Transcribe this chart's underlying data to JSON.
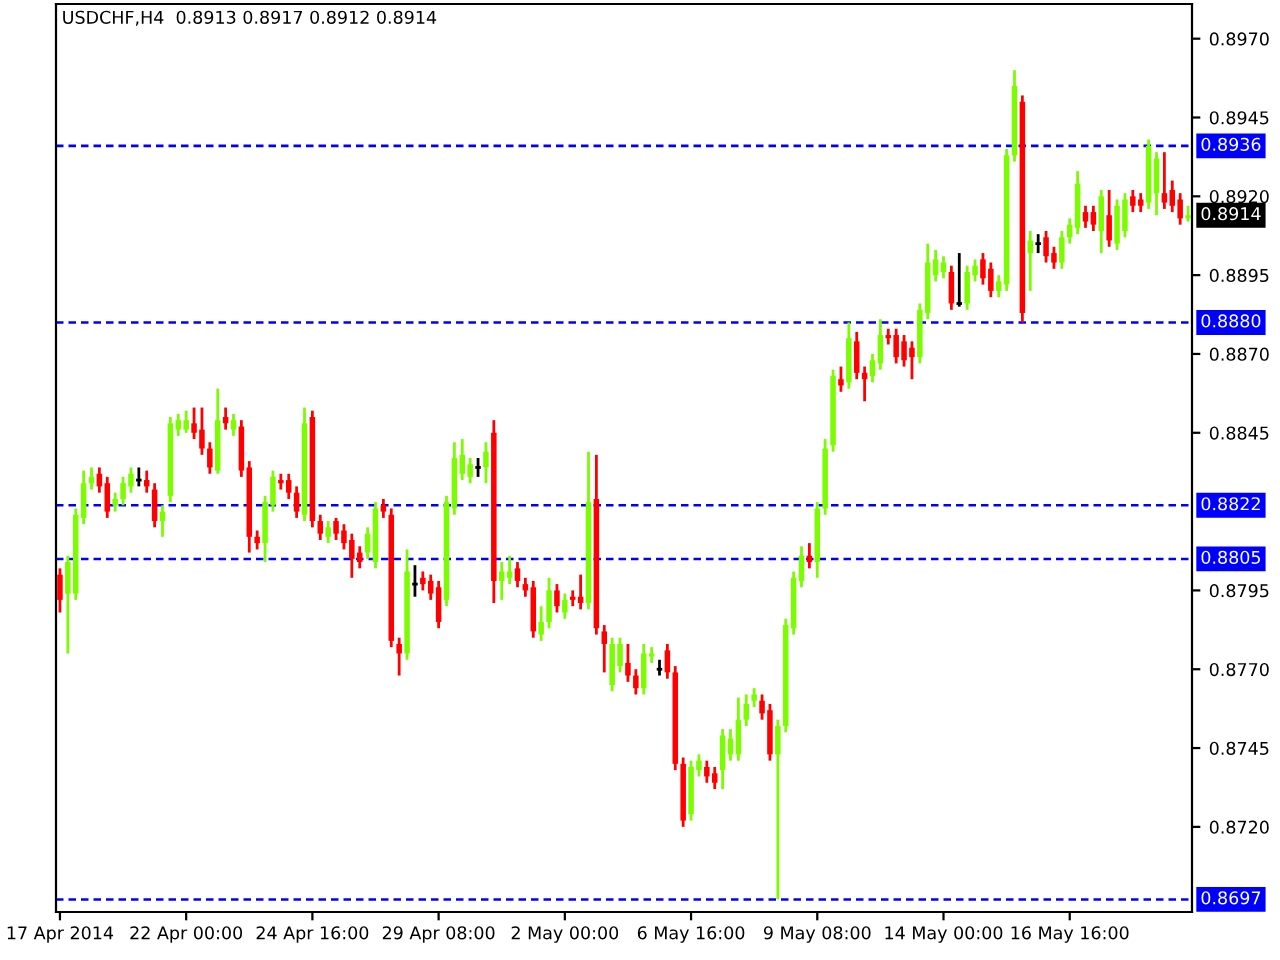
{
  "chart_data": {
    "type": "candlestick",
    "title": "USDCHF,H4  0.8913 0.8917 0.8912 0.8914",
    "categories": [
      "17 Apr 2014",
      null,
      null,
      null,
      null,
      null,
      null,
      null,
      null,
      null,
      null,
      null,
      null,
      null,
      null,
      null,
      "22 Apr 00:00",
      null,
      null,
      null,
      null,
      null,
      null,
      null,
      null,
      null,
      null,
      null,
      null,
      null,
      null,
      null,
      "24 Apr 16:00",
      null,
      null,
      null,
      null,
      null,
      null,
      null,
      null,
      null,
      null,
      null,
      null,
      null,
      null,
      null,
      "29 Apr 08:00",
      null,
      null,
      null,
      null,
      null,
      null,
      null,
      null,
      null,
      null,
      null,
      null,
      null,
      null,
      null,
      "2 May 00:00",
      null,
      null,
      null,
      null,
      null,
      null,
      null,
      null,
      null,
      null,
      null,
      null,
      null,
      null,
      null,
      "6 May 16:00",
      null,
      null,
      null,
      null,
      null,
      null,
      null,
      null,
      null,
      null,
      null,
      null,
      null,
      null,
      null,
      "9 May 08:00",
      null,
      null,
      null,
      null,
      null,
      null,
      null,
      null,
      null,
      null,
      null,
      null,
      null,
      null,
      null,
      "14 May 00:00",
      null,
      null,
      null,
      null,
      null,
      null,
      null,
      null,
      null,
      null,
      null,
      null,
      null,
      null,
      null,
      "16 May 16:00",
      null,
      null,
      null,
      null,
      null,
      null,
      null,
      null,
      null,
      null,
      null,
      null,
      null,
      null,
      null
    ],
    "ohlc": [
      [
        0.88,
        0.8802,
        0.8788,
        0.8792
      ],
      [
        0.8794,
        0.8806,
        0.8775,
        0.8804
      ],
      [
        0.8794,
        0.8821,
        0.8792,
        0.8819
      ],
      [
        0.8818,
        0.8833,
        0.8816,
        0.8829
      ],
      [
        0.8829,
        0.8834,
        0.8827,
        0.8831
      ],
      [
        0.8832,
        0.8834,
        0.8826,
        0.8828
      ],
      [
        0.8829,
        0.8831,
        0.8818,
        0.882
      ],
      [
        0.8822,
        0.8826,
        0.882,
        0.8824
      ],
      [
        0.8824,
        0.8831,
        0.8822,
        0.8829
      ],
      [
        0.8828,
        0.8834,
        0.8826,
        0.8832
      ],
      [
        0.883,
        0.8834,
        0.8828,
        0.883
      ],
      [
        0.883,
        0.8833,
        0.8826,
        0.8828
      ],
      [
        0.8827,
        0.8829,
        0.8815,
        0.8817
      ],
      [
        0.8817,
        0.8822,
        0.8812,
        0.882
      ],
      [
        0.8825,
        0.885,
        0.8823,
        0.8848
      ],
      [
        0.8846,
        0.8851,
        0.8844,
        0.8849
      ],
      [
        0.8846,
        0.8852,
        0.8845,
        0.8849
      ],
      [
        0.8848,
        0.8853,
        0.8843,
        0.8845
      ],
      [
        0.8846,
        0.8853,
        0.8838,
        0.884
      ],
      [
        0.884,
        0.8842,
        0.8832,
        0.8834
      ],
      [
        0.8833,
        0.8859,
        0.8832,
        0.8849
      ],
      [
        0.885,
        0.8853,
        0.8846,
        0.8848
      ],
      [
        0.8846,
        0.8851,
        0.8844,
        0.8849
      ],
      [
        0.8847,
        0.8849,
        0.8831,
        0.8833
      ],
      [
        0.8834,
        0.8836,
        0.8807,
        0.8812
      ],
      [
        0.8812,
        0.8814,
        0.8808,
        0.881
      ],
      [
        0.881,
        0.8825,
        0.8804,
        0.8823
      ],
      [
        0.8822,
        0.8833,
        0.882,
        0.8831
      ],
      [
        0.883,
        0.8832,
        0.8827,
        0.8829
      ],
      [
        0.883,
        0.8832,
        0.8824,
        0.8826
      ],
      [
        0.8826,
        0.8828,
        0.8818,
        0.882
      ],
      [
        0.8819,
        0.8853,
        0.8817,
        0.8848
      ],
      [
        0.885,
        0.8852,
        0.8815,
        0.8817
      ],
      [
        0.8817,
        0.8819,
        0.8811,
        0.8813
      ],
      [
        0.8812,
        0.8817,
        0.881,
        0.8815
      ],
      [
        0.8817,
        0.8818,
        0.8811,
        0.8813
      ],
      [
        0.8814,
        0.8816,
        0.8808,
        0.881
      ],
      [
        0.8811,
        0.8813,
        0.8799,
        0.8805
      ],
      [
        0.8807,
        0.8809,
        0.8802,
        0.8804
      ],
      [
        0.8807,
        0.8815,
        0.8805,
        0.8813
      ],
      [
        0.8804,
        0.8823,
        0.8802,
        0.8821
      ],
      [
        0.8822,
        0.8824,
        0.8818,
        0.882
      ],
      [
        0.8819,
        0.8821,
        0.8777,
        0.8779
      ],
      [
        0.8778,
        0.878,
        0.8768,
        0.8775
      ],
      [
        0.8775,
        0.8808,
        0.8773,
        0.8801
      ],
      [
        0.8797,
        0.8803,
        0.8793,
        0.8797
      ],
      [
        0.8799,
        0.8801,
        0.8795,
        0.8797
      ],
      [
        0.8798,
        0.88,
        0.8792,
        0.8794
      ],
      [
        0.8796,
        0.8798,
        0.8783,
        0.8785
      ],
      [
        0.8792,
        0.8825,
        0.879,
        0.8823
      ],
      [
        0.8821,
        0.8842,
        0.8819,
        0.8837
      ],
      [
        0.8832,
        0.8843,
        0.883,
        0.8838
      ],
      [
        0.8831,
        0.8837,
        0.8829,
        0.8835
      ],
      [
        0.8834,
        0.8837,
        0.8831,
        0.8834
      ],
      [
        0.8834,
        0.8842,
        0.8829,
        0.8839
      ],
      [
        0.8845,
        0.8849,
        0.8791,
        0.8798
      ],
      [
        0.8798,
        0.8804,
        0.8792,
        0.8801
      ],
      [
        0.8799,
        0.8806,
        0.8797,
        0.8801
      ],
      [
        0.8802,
        0.8804,
        0.8796,
        0.8798
      ],
      [
        0.8797,
        0.8799,
        0.8793,
        0.8795
      ],
      [
        0.8796,
        0.8798,
        0.878,
        0.8782
      ],
      [
        0.8781,
        0.879,
        0.8779,
        0.8785
      ],
      [
        0.8785,
        0.8799,
        0.8783,
        0.8795
      ],
      [
        0.8795,
        0.8797,
        0.8788,
        0.879
      ],
      [
        0.8788,
        0.8794,
        0.8786,
        0.8792
      ],
      [
        0.8793,
        0.8795,
        0.879,
        0.8792
      ],
      [
        0.8793,
        0.88,
        0.8789,
        0.8791
      ],
      [
        0.8791,
        0.8839,
        0.8789,
        0.8823
      ],
      [
        0.8824,
        0.8838,
        0.8781,
        0.8783
      ],
      [
        0.8782,
        0.8784,
        0.8769,
        0.8778
      ],
      [
        0.8765,
        0.878,
        0.8763,
        0.8778
      ],
      [
        0.8771,
        0.878,
        0.8769,
        0.8778
      ],
      [
        0.8772,
        0.8778,
        0.8766,
        0.8768
      ],
      [
        0.8768,
        0.877,
        0.8762,
        0.8764
      ],
      [
        0.8764,
        0.8778,
        0.8762,
        0.8775
      ],
      [
        0.8774,
        0.8777,
        0.8772,
        0.8775
      ],
      [
        0.877,
        0.8773,
        0.8768,
        0.877
      ],
      [
        0.8776,
        0.8778,
        0.8767,
        0.8769
      ],
      [
        0.8769,
        0.8771,
        0.8738,
        0.874
      ],
      [
        0.874,
        0.8742,
        0.872,
        0.8722
      ],
      [
        0.8724,
        0.8741,
        0.8722,
        0.8739
      ],
      [
        0.8738,
        0.8743,
        0.8736,
        0.8741
      ],
      [
        0.8739,
        0.8741,
        0.8734,
        0.8736
      ],
      [
        0.8737,
        0.8739,
        0.8732,
        0.8734
      ],
      [
        0.8738,
        0.8751,
        0.8732,
        0.8749
      ],
      [
        0.8743,
        0.8751,
        0.8741,
        0.8748
      ],
      [
        0.8743,
        0.8761,
        0.8741,
        0.8754
      ],
      [
        0.8754,
        0.8762,
        0.8752,
        0.8759
      ],
      [
        0.876,
        0.8764,
        0.8758,
        0.8762
      ],
      [
        0.876,
        0.8762,
        0.8754,
        0.8756
      ],
      [
        0.8757,
        0.8759,
        0.8741,
        0.8743
      ],
      [
        0.8743,
        0.8754,
        0.8697,
        0.8752
      ],
      [
        0.8752,
        0.8786,
        0.875,
        0.8784
      ],
      [
        0.8783,
        0.8801,
        0.8781,
        0.8799
      ],
      [
        0.8798,
        0.8809,
        0.8796,
        0.8806
      ],
      [
        0.8806,
        0.881,
        0.8802,
        0.8804
      ],
      [
        0.8804,
        0.8823,
        0.8799,
        0.8821
      ],
      [
        0.8821,
        0.8843,
        0.8819,
        0.884
      ],
      [
        0.8841,
        0.8865,
        0.8839,
        0.8863
      ],
      [
        0.8862,
        0.8866,
        0.8858,
        0.886
      ],
      [
        0.8861,
        0.888,
        0.8859,
        0.8875
      ],
      [
        0.8874,
        0.8877,
        0.8862,
        0.8864
      ],
      [
        0.8864,
        0.8866,
        0.8855,
        0.8862
      ],
      [
        0.8863,
        0.887,
        0.8861,
        0.8868
      ],
      [
        0.8867,
        0.8881,
        0.8865,
        0.8876
      ],
      [
        0.8876,
        0.8878,
        0.8873,
        0.8875
      ],
      [
        0.8876,
        0.8878,
        0.8867,
        0.8869
      ],
      [
        0.8874,
        0.8876,
        0.8866,
        0.8868
      ],
      [
        0.8872,
        0.8874,
        0.8862,
        0.8869
      ],
      [
        0.8869,
        0.8886,
        0.8867,
        0.8884
      ],
      [
        0.8883,
        0.8905,
        0.8881,
        0.8899
      ],
      [
        0.8895,
        0.8903,
        0.8893,
        0.89
      ],
      [
        0.8896,
        0.8901,
        0.8894,
        0.8899
      ],
      [
        0.8896,
        0.8898,
        0.8884,
        0.8886
      ],
      [
        0.8886,
        0.8902,
        0.8885,
        0.8886
      ],
      [
        0.8886,
        0.8898,
        0.8884,
        0.8896
      ],
      [
        0.8895,
        0.89,
        0.8893,
        0.8898
      ],
      [
        0.89,
        0.8902,
        0.8892,
        0.8894
      ],
      [
        0.8897,
        0.8899,
        0.8888,
        0.889
      ],
      [
        0.889,
        0.8895,
        0.8888,
        0.8893
      ],
      [
        0.8892,
        0.8935,
        0.889,
        0.8933
      ],
      [
        0.8933,
        0.896,
        0.8931,
        0.8955
      ],
      [
        0.895,
        0.8952,
        0.888,
        0.8883
      ],
      [
        0.8902,
        0.8909,
        0.889,
        0.8906
      ],
      [
        0.8905,
        0.8908,
        0.8902,
        0.8905
      ],
      [
        0.8907,
        0.8909,
        0.8899,
        0.8901
      ],
      [
        0.8902,
        0.8904,
        0.8897,
        0.8899
      ],
      [
        0.8899,
        0.8909,
        0.8897,
        0.8907
      ],
      [
        0.8907,
        0.8913,
        0.8905,
        0.8911
      ],
      [
        0.891,
        0.8928,
        0.8908,
        0.8924
      ],
      [
        0.8915,
        0.8917,
        0.891,
        0.8912
      ],
      [
        0.8915,
        0.8917,
        0.8909,
        0.8911
      ],
      [
        0.8909,
        0.8922,
        0.8902,
        0.892
      ],
      [
        0.8914,
        0.8922,
        0.8904,
        0.8906
      ],
      [
        0.8905,
        0.8919,
        0.8903,
        0.8917
      ],
      [
        0.8909,
        0.8921,
        0.8907,
        0.8919
      ],
      [
        0.892,
        0.8922,
        0.8915,
        0.8917
      ],
      [
        0.8919,
        0.8921,
        0.8915,
        0.8917
      ],
      [
        0.8918,
        0.8938,
        0.8916,
        0.8936
      ],
      [
        0.8921,
        0.8934,
        0.8914,
        0.8932
      ],
      [
        0.8921,
        0.8934,
        0.8916,
        0.8918
      ],
      [
        0.8922,
        0.8925,
        0.8915,
        0.8917
      ],
      [
        0.8919,
        0.8921,
        0.8911,
        0.8913
      ],
      [
        0.8913,
        0.8917,
        0.8912,
        0.8914
      ]
    ],
    "colors": [
      "#ff0000",
      "#7cfc00",
      "#7cfc00",
      "#7cfc00",
      "#7cfc00",
      "#ff0000",
      "#ff0000",
      "#7cfc00",
      "#7cfc00",
      "#7cfc00",
      "#000000",
      "#ff0000",
      "#ff0000",
      "#7cfc00",
      "#7cfc00",
      "#7cfc00",
      "#7cfc00",
      "#ff0000",
      "#ff0000",
      "#ff0000",
      "#7cfc00",
      "#ff0000",
      "#7cfc00",
      "#ff0000",
      "#ff0000",
      "#ff0000",
      "#7cfc00",
      "#7cfc00",
      "#ff0000",
      "#ff0000",
      "#ff0000",
      "#7cfc00",
      "#ff0000",
      "#ff0000",
      "#7cfc00",
      "#ff0000",
      "#ff0000",
      "#ff0000",
      "#ff0000",
      "#7cfc00",
      "#7cfc00",
      "#ff0000",
      "#ff0000",
      "#ff0000",
      "#7cfc00",
      "#000000",
      "#ff0000",
      "#ff0000",
      "#ff0000",
      "#7cfc00",
      "#7cfc00",
      "#7cfc00",
      "#7cfc00",
      "#000000",
      "#7cfc00",
      "#ff0000",
      "#7cfc00",
      "#7cfc00",
      "#ff0000",
      "#ff0000",
      "#ff0000",
      "#7cfc00",
      "#7cfc00",
      "#ff0000",
      "#7cfc00",
      "#ff0000",
      "#ff0000",
      "#7cfc00",
      "#ff0000",
      "#ff0000",
      "#7cfc00",
      "#7cfc00",
      "#ff0000",
      "#ff0000",
      "#7cfc00",
      "#7cfc00",
      "#000000",
      "#ff0000",
      "#ff0000",
      "#ff0000",
      "#7cfc00",
      "#7cfc00",
      "#ff0000",
      "#ff0000",
      "#7cfc00",
      "#7cfc00",
      "#7cfc00",
      "#7cfc00",
      "#7cfc00",
      "#ff0000",
      "#ff0000",
      "#7cfc00",
      "#7cfc00",
      "#7cfc00",
      "#7cfc00",
      "#ff0000",
      "#7cfc00",
      "#7cfc00",
      "#7cfc00",
      "#ff0000",
      "#7cfc00",
      "#ff0000",
      "#ff0000",
      "#7cfc00",
      "#7cfc00",
      "#ff0000",
      "#ff0000",
      "#ff0000",
      "#ff0000",
      "#7cfc00",
      "#7cfc00",
      "#7cfc00",
      "#7cfc00",
      "#ff0000",
      "#000000",
      "#7cfc00",
      "#7cfc00",
      "#ff0000",
      "#ff0000",
      "#7cfc00",
      "#7cfc00",
      "#7cfc00",
      "#ff0000",
      "#7cfc00",
      "#000000",
      "#ff0000",
      "#ff0000",
      "#7cfc00",
      "#7cfc00",
      "#7cfc00",
      "#ff0000",
      "#ff0000",
      "#7cfc00",
      "#ff0000",
      "#7cfc00",
      "#7cfc00",
      "#ff0000",
      "#ff0000",
      "#7cfc00",
      "#7cfc00",
      "#ff0000",
      "#ff0000",
      "#ff0000",
      "#7cfc00"
    ],
    "ylim": [
      0.8693,
      0.8981
    ],
    "yticks": [
      {
        "value": 0.872,
        "label": "0.8720"
      },
      0.8745,
      {
        "value": 0.877,
        "label": "0.8770"
      },
      0.8795,
      0.8845,
      {
        "value": 0.887,
        "label": "0.8870"
      },
      0.8895,
      {
        "value": 0.892,
        "label": "0.8920"
      },
      0.8945,
      {
        "value": 0.897,
        "label": "0.8970"
      }
    ],
    "ref_lines": [
      {
        "axis": "y",
        "value": 0.8936,
        "label": "0.8936",
        "color": "#0000ff",
        "line_style": "dashed"
      },
      {
        "axis": "y",
        "value": 0.888,
        "label": "0.8880",
        "color": "#0000ff",
        "line_style": "dashed"
      },
      {
        "axis": "y",
        "value": 0.8822,
        "label": "0.8822",
        "color": "#0000ff",
        "line_style": "dashed"
      },
      {
        "axis": "y",
        "value": 0.8805,
        "label": "0.8805",
        "color": "#0000ff",
        "line_style": "dashed"
      },
      {
        "axis": "y",
        "value": 0.8697,
        "label": "0.8697",
        "color": "#0000ff",
        "line_style": "dashed"
      }
    ],
    "annotations": [
      {
        "text": "0.8914",
        "y": 0.8914
      }
    ],
    "grid": false
  }
}
